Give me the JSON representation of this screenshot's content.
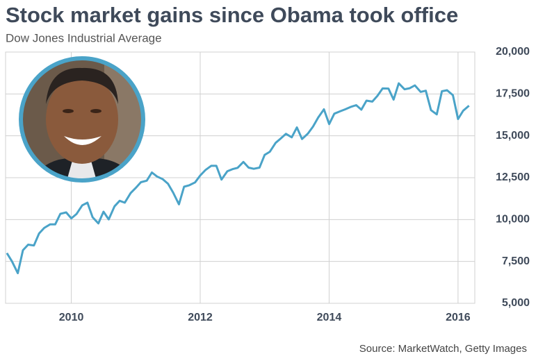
{
  "chart_data": {
    "type": "line",
    "title": "Stock market gains since Obama took office",
    "subtitle": "Dow Jones Industrial Average",
    "source": "Source: MarketWatch, Getty Images",
    "x": [
      2009.0,
      2009.08,
      2009.17,
      2009.25,
      2009.33,
      2009.42,
      2009.5,
      2009.58,
      2009.67,
      2009.75,
      2009.83,
      2009.92,
      2010.0,
      2010.08,
      2010.17,
      2010.25,
      2010.33,
      2010.42,
      2010.5,
      2010.58,
      2010.67,
      2010.75,
      2010.83,
      2010.92,
      2011.0,
      2011.08,
      2011.17,
      2011.25,
      2011.33,
      2011.42,
      2011.5,
      2011.58,
      2011.67,
      2011.75,
      2011.83,
      2011.92,
      2012.0,
      2012.08,
      2012.17,
      2012.25,
      2012.33,
      2012.42,
      2012.5,
      2012.58,
      2012.67,
      2012.75,
      2012.83,
      2012.92,
      2013.0,
      2013.08,
      2013.17,
      2013.25,
      2013.33,
      2013.42,
      2013.5,
      2013.58,
      2013.67,
      2013.75,
      2013.83,
      2013.92,
      2014.0,
      2014.08,
      2014.17,
      2014.25,
      2014.33,
      2014.42,
      2014.5,
      2014.58,
      2014.67,
      2014.75,
      2014.83,
      2014.92,
      2015.0,
      2015.08,
      2015.17,
      2015.25,
      2015.33,
      2015.42,
      2015.5,
      2015.58,
      2015.67,
      2015.75,
      2015.83,
      2015.92,
      2016.0,
      2016.08,
      2016.17
    ],
    "series": [
      {
        "name": "Dow Jones Industrial Average",
        "color": "#4aa3c8",
        "values": [
          8000,
          7500,
          6800,
          8170,
          8500,
          8450,
          9170,
          9500,
          9710,
          9710,
          10340,
          10430,
          10070,
          10330,
          10850,
          11010,
          10140,
          9770,
          10470,
          10010,
          10790,
          11120,
          11010,
          11580,
          11890,
          12230,
          12320,
          12810,
          12570,
          12410,
          12140,
          11610,
          10910,
          11960,
          12050,
          12220,
          12630,
          12950,
          13210,
          13210,
          12390,
          12880,
          13010,
          13090,
          13440,
          13100,
          13030,
          13100,
          13860,
          14050,
          14580,
          14840,
          15120,
          14910,
          15500,
          14810,
          15130,
          15550,
          16090,
          16580,
          15700,
          16320,
          16460,
          16580,
          16720,
          16830,
          16560,
          17100,
          17040,
          17390,
          17830,
          17820,
          17160,
          18130,
          17780,
          17840,
          18010,
          17620,
          17690,
          16530,
          16280,
          17660,
          17720,
          17425,
          16000,
          16500,
          16800
        ]
      }
    ],
    "xlim": [
      2008.98,
      2016.26
    ],
    "xticks": [
      2010,
      2012,
      2014,
      2016
    ],
    "ylim": [
      5000,
      20000
    ],
    "yticks": [
      {
        "value": 5000,
        "label": "5,000"
      },
      {
        "value": 7500,
        "label": "7,500"
      },
      {
        "value": 10000,
        "label": "10,000"
      },
      {
        "value": 12500,
        "label": "12,500"
      },
      {
        "value": 15000,
        "label": "15,000"
      },
      {
        "value": 17500,
        "label": "17,500"
      },
      {
        "value": 20000,
        "label": "20,000"
      }
    ],
    "grid": true
  }
}
